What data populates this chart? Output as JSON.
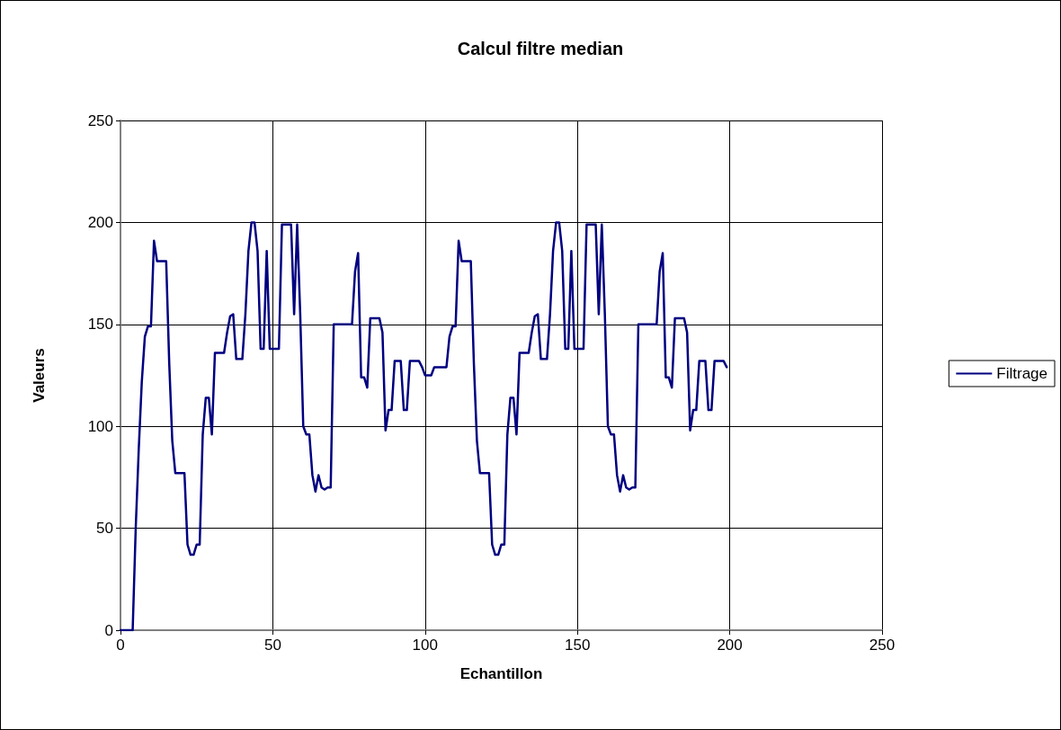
{
  "chart_data": {
    "type": "line",
    "title": "Calcul filtre median",
    "xlabel": "Echantillon",
    "ylabel": "Valeurs",
    "x": [
      0,
      1,
      2,
      3,
      4,
      5,
      6,
      7,
      8,
      9,
      10,
      11,
      12,
      13,
      14,
      15,
      16,
      17,
      18,
      19,
      20,
      21,
      22,
      23,
      24,
      25,
      26,
      27,
      28,
      29,
      30,
      31,
      32,
      33,
      34,
      35,
      36,
      37,
      38,
      39,
      40,
      41,
      42,
      43,
      44,
      45,
      46,
      47,
      48,
      49,
      50,
      51,
      52,
      53,
      54,
      55,
      56,
      57,
      58,
      59,
      60,
      61,
      62,
      63,
      64,
      65,
      66,
      67,
      68,
      69,
      70,
      71,
      72,
      73,
      74,
      75,
      76,
      77,
      78,
      79,
      80,
      81,
      82,
      83,
      84,
      85,
      86,
      87,
      88,
      89,
      90,
      91,
      92,
      93,
      94,
      95,
      96,
      97,
      98,
      99,
      100,
      101,
      102,
      103,
      104,
      105,
      106,
      107,
      108,
      109,
      110,
      111,
      112,
      113,
      114,
      115,
      116,
      117,
      118,
      119,
      120,
      121,
      122,
      123,
      124,
      125,
      126,
      127,
      128,
      129,
      130,
      131,
      132,
      133,
      134,
      135,
      136,
      137,
      138,
      139,
      140,
      141,
      142,
      143,
      144,
      145,
      146,
      147,
      148,
      149,
      150,
      151,
      152,
      153,
      154,
      155,
      156,
      157,
      158,
      159,
      160,
      161,
      162,
      163,
      164,
      165,
      166,
      167,
      168,
      169,
      170,
      171,
      172,
      173,
      174,
      175,
      176,
      177,
      178,
      179,
      180,
      181,
      182,
      183,
      184,
      185,
      186,
      187,
      188,
      189,
      190,
      191,
      192,
      193,
      194,
      195,
      196,
      197,
      198,
      199
    ],
    "series": [
      {
        "name": "Filtrage",
        "color": "#000080",
        "values": [
          0,
          0,
          0,
          0,
          0,
          50,
          89,
          122,
          144,
          149,
          149,
          191,
          181,
          181,
          181,
          181,
          131,
          93,
          77,
          77,
          77,
          77,
          42,
          37,
          37,
          42,
          42,
          96,
          114,
          114,
          96,
          136,
          136,
          136,
          136,
          146,
          154,
          155,
          133,
          133,
          133,
          155,
          186,
          200,
          200,
          186,
          138,
          138,
          186,
          138,
          138,
          138,
          138,
          199,
          199,
          199,
          199,
          155,
          199,
          155,
          100,
          96,
          96,
          76,
          68,
          76,
          70,
          69,
          70,
          70,
          150,
          150,
          150,
          150,
          150,
          150,
          150,
          176,
          185,
          124,
          124,
          119,
          153,
          153,
          153,
          153,
          146,
          98,
          108,
          108,
          132,
          132,
          132,
          108,
          108,
          132,
          132,
          132,
          132,
          129,
          125,
          125,
          125,
          129,
          129,
          129,
          129,
          129,
          144,
          149,
          149,
          191,
          181,
          181,
          181,
          181,
          131,
          93,
          77,
          77,
          77,
          77,
          42,
          37,
          37,
          42,
          42,
          96,
          114,
          114,
          96,
          136,
          136,
          136,
          136,
          146,
          154,
          155,
          133,
          133,
          133,
          155,
          186,
          200,
          200,
          186,
          138,
          138,
          186,
          138,
          138,
          138,
          138,
          199,
          199,
          199,
          199,
          155,
          199,
          155,
          100,
          96,
          96,
          76,
          68,
          76,
          70,
          69,
          70,
          70,
          150,
          150,
          150,
          150,
          150,
          150,
          150,
          176,
          185,
          124,
          124,
          119,
          153,
          153,
          153,
          153,
          146,
          98,
          108,
          108,
          132,
          132,
          132,
          108,
          108,
          132,
          132,
          132,
          132,
          129
        ]
      }
    ],
    "xlim": [
      0,
      250
    ],
    "xticks": [
      0,
      50,
      100,
      150,
      200,
      250
    ],
    "ylim": [
      0,
      250
    ],
    "yticks": [
      0,
      50,
      100,
      150,
      200,
      250
    ],
    "grid": true,
    "legend": "right",
    "marker": "none",
    "line_style": "solid"
  }
}
